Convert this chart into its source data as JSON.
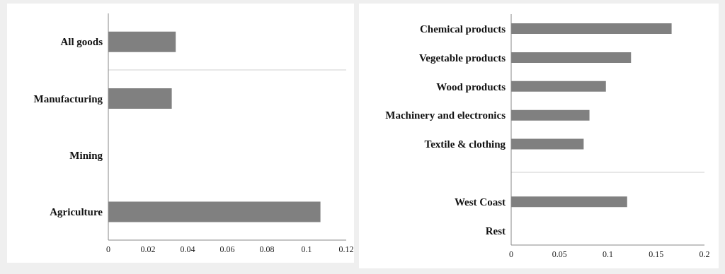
{
  "chart_data": [
    {
      "type": "bar",
      "orientation": "horizontal",
      "categories": [
        "All goods",
        "Manufacturing",
        "Mining",
        "Agriculture"
      ],
      "values": [
        0.034,
        0.032,
        0,
        0.107
      ],
      "color": "#808080",
      "xlim": [
        0,
        0.12
      ],
      "xticks": [
        0,
        0.02,
        0.04,
        0.06,
        0.08,
        0.1,
        0.12
      ]
    },
    {
      "type": "bar",
      "orientation": "horizontal",
      "categories": [
        "Chemical products",
        "Vegetable products",
        "Wood products",
        "Machinery and electronics",
        "Textile & clothing",
        null,
        "West Coast",
        "Rest"
      ],
      "values": [
        0.166,
        0.124,
        0.098,
        0.081,
        0.075,
        null,
        0.12,
        0
      ],
      "color": "#808080",
      "xlim": [
        0,
        0.2
      ],
      "xticks": [
        0,
        0.05,
        0.1,
        0.15,
        0.2
      ]
    }
  ]
}
